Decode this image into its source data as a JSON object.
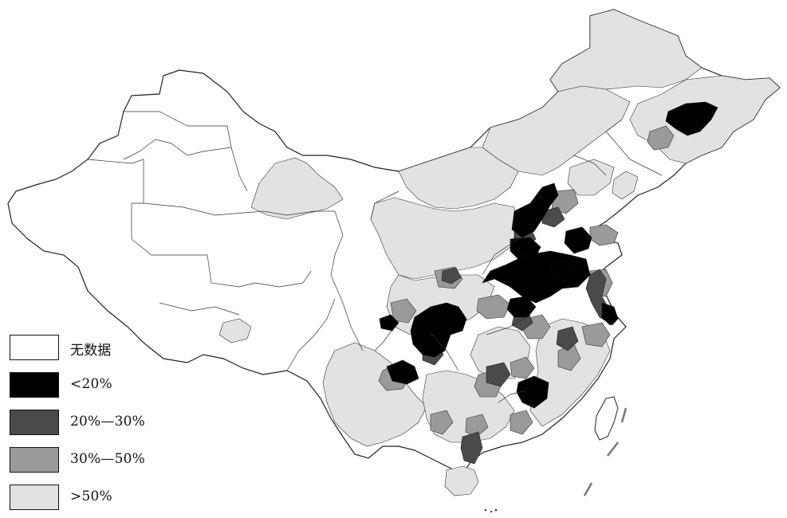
{
  "map": {
    "legend": [
      {
        "label": "无数据",
        "color": "#ffffff"
      },
      {
        "label": "<20%",
        "color": "#000000"
      },
      {
        "label": "20%—30%",
        "color": "#4a4a4a"
      },
      {
        "label": "30%—50%",
        "color": "#9a9a9a"
      },
      {
        "label": ">50%",
        "color": "#e2e2e2"
      }
    ]
  }
}
